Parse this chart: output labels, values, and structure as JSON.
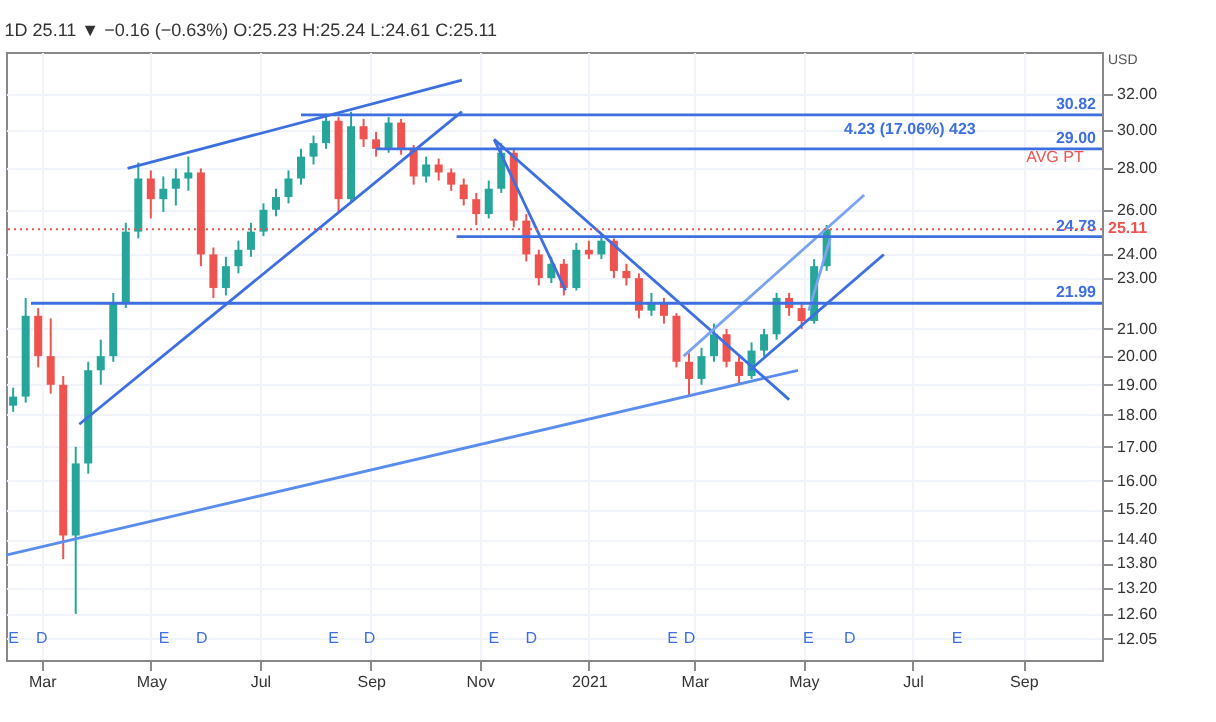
{
  "chart_data": {
    "type": "candlestick",
    "title": "1D 25.11 ▼ −0.16 (−0.63%) O:25.23 H:25.24 L:24.61 C:25.11",
    "x": [
      "2020-02-14",
      "2020-02-21",
      "2020-02-28",
      "2020-03-06",
      "2020-03-13",
      "2020-03-20",
      "2020-03-27",
      "2020-04-03",
      "2020-04-10",
      "2020-04-17",
      "2020-04-24",
      "2020-05-01",
      "2020-05-08",
      "2020-05-15",
      "2020-05-22",
      "2020-05-29",
      "2020-06-05",
      "2020-06-12",
      "2020-06-19",
      "2020-06-26",
      "2020-07-03",
      "2020-07-10",
      "2020-07-17",
      "2020-07-24",
      "2020-07-31",
      "2020-08-07",
      "2020-08-14",
      "2020-08-21",
      "2020-08-28",
      "2020-09-04",
      "2020-09-11",
      "2020-09-18",
      "2020-09-25",
      "2020-10-02",
      "2020-10-09",
      "2020-10-16",
      "2020-10-23",
      "2020-10-30",
      "2020-11-06",
      "2020-11-13",
      "2020-11-20",
      "2020-11-27",
      "2020-12-04",
      "2020-12-11",
      "2020-12-18",
      "2020-12-25",
      "2021-01-01",
      "2021-01-08",
      "2021-01-15",
      "2021-01-22",
      "2021-01-29",
      "2021-02-05",
      "2021-02-12",
      "2021-02-19",
      "2021-02-26",
      "2021-03-05",
      "2021-03-12",
      "2021-03-19",
      "2021-03-26",
      "2021-04-02",
      "2021-04-09",
      "2021-04-16",
      "2021-04-23",
      "2021-04-30",
      "2021-05-07",
      "2021-05-14"
    ],
    "ohlc": [
      [
        18.3,
        18.9,
        18.1,
        18.6
      ],
      [
        18.6,
        22.2,
        18.4,
        21.5
      ],
      [
        21.5,
        21.8,
        19.6,
        20.0
      ],
      [
        20.0,
        21.4,
        18.7,
        19.0
      ],
      [
        19.0,
        19.3,
        13.9,
        14.5
      ],
      [
        14.5,
        17.0,
        12.6,
        16.5
      ],
      [
        16.5,
        19.8,
        16.2,
        19.5
      ],
      [
        19.5,
        20.6,
        19.0,
        20.0
      ],
      [
        20.0,
        22.4,
        19.8,
        22.0
      ],
      [
        22.0,
        25.4,
        21.8,
        25.0
      ],
      [
        25.0,
        28.3,
        24.7,
        27.5
      ],
      [
        27.5,
        27.9,
        25.6,
        26.5
      ],
      [
        26.5,
        27.6,
        25.9,
        27.0
      ],
      [
        27.0,
        28.0,
        26.2,
        27.5
      ],
      [
        27.5,
        28.6,
        26.9,
        27.8
      ],
      [
        27.8,
        28.0,
        23.5,
        24.0
      ],
      [
        24.0,
        24.3,
        22.2,
        22.6
      ],
      [
        22.6,
        23.9,
        22.3,
        23.5
      ],
      [
        23.5,
        24.6,
        23.2,
        24.2
      ],
      [
        24.2,
        25.4,
        23.9,
        25.0
      ],
      [
        25.0,
        26.3,
        24.8,
        26.0
      ],
      [
        26.0,
        27.0,
        25.7,
        26.6
      ],
      [
        26.6,
        27.9,
        26.3,
        27.5
      ],
      [
        27.5,
        29.0,
        27.2,
        28.6
      ],
      [
        28.6,
        29.7,
        28.2,
        29.3
      ],
      [
        29.3,
        30.9,
        29.0,
        30.5
      ],
      [
        30.5,
        30.7,
        25.9,
        26.5
      ],
      [
        26.5,
        31.0,
        26.3,
        30.2
      ],
      [
        30.2,
        30.6,
        29.1,
        29.5
      ],
      [
        29.5,
        29.9,
        28.6,
        29.0
      ],
      [
        29.0,
        30.7,
        28.8,
        30.4
      ],
      [
        30.4,
        30.6,
        28.7,
        29.0
      ],
      [
        29.0,
        29.2,
        27.2,
        27.6
      ],
      [
        27.6,
        28.6,
        27.3,
        28.2
      ],
      [
        28.2,
        28.5,
        27.4,
        27.8
      ],
      [
        27.8,
        28.0,
        26.9,
        27.2
      ],
      [
        27.2,
        27.5,
        26.2,
        26.5
      ],
      [
        26.5,
        26.8,
        25.3,
        25.8
      ],
      [
        25.8,
        27.4,
        25.6,
        27.0
      ],
      [
        27.0,
        29.3,
        26.8,
        28.8
      ],
      [
        28.8,
        29.0,
        25.2,
        25.5
      ],
      [
        25.5,
        25.8,
        23.7,
        24.0
      ],
      [
        24.0,
        24.2,
        22.7,
        23.0
      ],
      [
        23.0,
        23.9,
        22.8,
        23.6
      ],
      [
        23.6,
        23.8,
        22.3,
        22.6
      ],
      [
        22.6,
        24.5,
        22.5,
        24.2
      ],
      [
        24.2,
        24.6,
        23.8,
        24.0
      ],
      [
        24.0,
        24.9,
        23.8,
        24.6
      ],
      [
        24.6,
        24.7,
        23.0,
        23.3
      ],
      [
        23.3,
        23.6,
        22.7,
        23.0
      ],
      [
        23.0,
        23.2,
        21.4,
        21.7
      ],
      [
        21.7,
        22.4,
        21.5,
        22.0
      ],
      [
        22.0,
        22.2,
        21.2,
        21.5
      ],
      [
        21.5,
        21.6,
        19.6,
        19.8
      ],
      [
        19.8,
        20.1,
        18.6,
        19.2
      ],
      [
        19.2,
        20.3,
        19.0,
        20.0
      ],
      [
        20.0,
        21.2,
        19.8,
        20.8
      ],
      [
        20.8,
        21.0,
        19.6,
        19.8
      ],
      [
        19.8,
        20.0,
        19.0,
        19.3
      ],
      [
        19.3,
        20.5,
        19.2,
        20.2
      ],
      [
        20.2,
        21.0,
        20.0,
        20.8
      ],
      [
        20.8,
        22.4,
        20.6,
        22.2
      ],
      [
        22.2,
        22.4,
        21.5,
        21.8
      ],
      [
        21.8,
        22.0,
        21.0,
        21.3
      ],
      [
        21.3,
        23.8,
        21.2,
        23.5
      ],
      [
        23.5,
        25.3,
        23.3,
        25.11
      ]
    ],
    "colors": [
      "#26a69a",
      "#26a69a",
      "#ef5350",
      "#ef5350",
      "#ef5350",
      "#26a69a",
      "#26a69a",
      "#26a69a",
      "#26a69a",
      "#26a69a",
      "#26a69a",
      "#ef5350",
      "#26a69a",
      "#26a69a",
      "#26a69a",
      "#ef5350",
      "#ef5350",
      "#26a69a",
      "#26a69a",
      "#26a69a",
      "#26a69a",
      "#26a69a",
      "#26a69a",
      "#26a69a",
      "#26a69a",
      "#26a69a",
      "#ef5350",
      "#26a69a",
      "#ef5350",
      "#ef5350",
      "#26a69a",
      "#ef5350",
      "#ef5350",
      "#26a69a",
      "#ef5350",
      "#ef5350",
      "#ef5350",
      "#ef5350",
      "#26a69a",
      "#26a69a",
      "#ef5350",
      "#ef5350",
      "#ef5350",
      "#26a69a",
      "#ef5350",
      "#26a69a",
      "#ef5350",
      "#26a69a",
      "#ef5350",
      "#ef5350",
      "#ef5350",
      "#26a69a",
      "#ef5350",
      "#ef5350",
      "#ef5350",
      "#26a69a",
      "#26a69a",
      "#ef5350",
      "#ef5350",
      "#26a69a",
      "#26a69a",
      "#26a69a",
      "#ef5350",
      "#ef5350",
      "#26a69a",
      "#26a69a"
    ],
    "series": [
      {
        "type": "line",
        "x": [
          "2020-04-18",
          "2020-10-22"
        ],
        "values": [
          28.0,
          32.8
        ],
        "color": "#3d6fe0"
      },
      {
        "type": "line",
        "x": [
          "2020-03-22",
          "2020-10-22"
        ],
        "values": [
          17.7,
          31.0
        ],
        "color": "#3d6fe0"
      },
      {
        "type": "line",
        "x": [
          "2020-02-10",
          "2021-04-28"
        ],
        "values": [
          14.0,
          19.5
        ],
        "color": "#5b8def"
      },
      {
        "type": "line",
        "x": [
          "2020-11-09",
          "2021-04-23"
        ],
        "values": [
          29.5,
          18.5
        ],
        "color": "#3d6fe0"
      },
      {
        "type": "line",
        "x": [
          "2020-11-09",
          "2020-12-19"
        ],
        "values": [
          29.5,
          22.5
        ],
        "color": "#3d6fe0"
      },
      {
        "type": "line",
        "x": [
          "2021-02-23",
          "2021-06-04"
        ],
        "values": [
          20.0,
          26.7
        ],
        "color": "#7aa3f0"
      },
      {
        "type": "line",
        "x": [
          "2021-04-01",
          "2021-06-15"
        ],
        "values": [
          19.5,
          24.0
        ],
        "color": "#3d6fe0"
      },
      {
        "type": "line",
        "x": [
          "2021-05-04",
          "2021-05-16"
        ],
        "values": [
          21.7,
          24.7
        ],
        "color": "#7aa3f0"
      },
      {
        "type": "line",
        "x": [
          "2020-07-24",
          "2021-10-15"
        ],
        "values": [
          30.82,
          30.82
        ],
        "color": "#3d6fe0",
        "value_labels": [
          null,
          "30.82"
        ]
      },
      {
        "type": "line",
        "x": [
          "2020-09-04",
          "2021-10-15"
        ],
        "values": [
          29.0,
          29.0
        ],
        "color": "#3d6fe0",
        "value_labels": [
          null,
          "29.00"
        ]
      },
      {
        "type": "line",
        "x": [
          "2020-10-19",
          "2021-10-15"
        ],
        "values": [
          24.78,
          24.78
        ],
        "color": "#3d6fe0",
        "value_labels": [
          null,
          "24.78"
        ]
      },
      {
        "type": "line",
        "x": [
          "2020-02-24",
          "2021-10-15"
        ],
        "values": [
          21.99,
          21.99
        ],
        "color": "#3d6fe0",
        "value_labels": [
          null,
          "21.99"
        ]
      }
    ],
    "ref_lines": [
      {
        "axis": "y",
        "value": 25.11,
        "label": "25.11",
        "color": "#ef5350",
        "line_style": "dotted"
      }
    ],
    "annotations": [
      "USD",
      "AVG PT",
      "4.23 (17.06%) 423",
      "E",
      "D",
      "E",
      "D",
      "E",
      "D",
      "E",
      "D",
      "E",
      "D",
      "E",
      "D",
      "E"
    ],
    "xlim": [
      "2020-02-10",
      "2021-10-15"
    ],
    "xticks": [
      {
        "value": "2020-03-01",
        "label": "Mar"
      },
      {
        "value": "2020-05-01",
        "label": "May"
      },
      {
        "value": "2020-07-01",
        "label": "Jul"
      },
      {
        "value": "2020-09-01",
        "label": "Sep"
      },
      {
        "value": "2020-11-01",
        "label": "Nov"
      },
      {
        "value": "2021-01-01",
        "label": "2021"
      },
      {
        "value": "2021-03-01",
        "label": "Mar"
      },
      {
        "value": "2021-05-01",
        "label": "May"
      },
      {
        "value": "2021-07-01",
        "label": "Jul"
      },
      {
        "value": "2021-09-01",
        "label": "Sep"
      }
    ],
    "ylim": [
      11.6,
      34.5
    ],
    "yticks": [
      {
        "value": 32,
        "label": "32.00"
      },
      {
        "value": 30,
        "label": "30.00"
      },
      {
        "value": 28,
        "label": "28.00"
      },
      {
        "value": 26,
        "label": "26.00"
      },
      {
        "value": 24,
        "label": "24.00"
      },
      {
        "value": 23,
        "label": "23.00"
      },
      {
        "value": 21,
        "label": "21.00"
      },
      {
        "value": 20,
        "label": "20.00"
      },
      {
        "value": 19,
        "label": "19.00"
      },
      {
        "value": 18,
        "label": "18.00"
      },
      {
        "value": 17,
        "label": "17.00"
      },
      {
        "value": 16,
        "label": "16.00"
      },
      {
        "value": 15.2,
        "label": "15.20"
      },
      {
        "value": 14.4,
        "label": "14.40"
      },
      {
        "value": 13.8,
        "label": "13.80"
      },
      {
        "value": 13.2,
        "label": "13.20"
      },
      {
        "value": 12.6,
        "label": "12.60"
      },
      {
        "value": 12.05,
        "label": "12.05"
      }
    ],
    "log": "y",
    "grid": true
  }
}
